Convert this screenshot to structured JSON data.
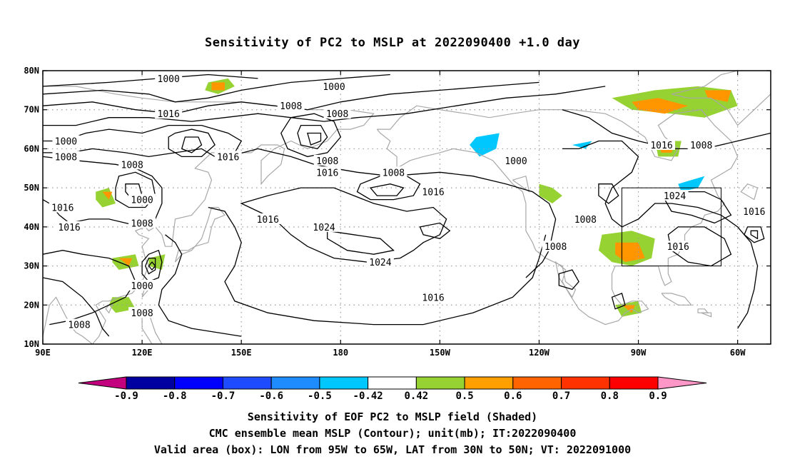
{
  "title": "Sensitivity of PC2 to MSLP at 2022090400 +1.0 day",
  "map": {
    "lat_labels": [
      "80N",
      "70N",
      "60N",
      "50N",
      "40N",
      "30N",
      "20N",
      "10N"
    ],
    "lon_labels": [
      "90E",
      "120E",
      "150E",
      "180",
      "150W",
      "120W",
      "90W",
      "60W"
    ],
    "extent": {
      "lon_west": "90E",
      "lon_east": "50W",
      "lat_south": "10N",
      "lat_north": "80N"
    },
    "contour_labels": [
      {
        "text": "1000",
        "lon": 128,
        "lat": 78
      },
      {
        "text": "1000",
        "lon": 178,
        "lat": 76
      },
      {
        "text": "1008",
        "lon": 165,
        "lat": 71
      },
      {
        "text": "1016",
        "lon": 128,
        "lat": 69
      },
      {
        "text": "1008",
        "lon": 179,
        "lat": 69
      },
      {
        "text": "1000",
        "lon": 97,
        "lat": 62
      },
      {
        "text": "1008",
        "lon": 97,
        "lat": 58
      },
      {
        "text": "1016",
        "lon": 146,
        "lat": 58
      },
      {
        "text": "1008",
        "lon": 176,
        "lat": 57
      },
      {
        "text": "1008",
        "lon": 117,
        "lat": 56
      },
      {
        "text": "1016",
        "lon": 176,
        "lat": 54
      },
      {
        "text": "1008",
        "lon": 196,
        "lat": 54
      },
      {
        "text": "1000",
        "lon": 233,
        "lat": 57
      },
      {
        "text": "1016",
        "lon": 277,
        "lat": 61
      },
      {
        "text": "1008",
        "lon": 289,
        "lat": 61
      },
      {
        "text": "1016",
        "lon": 208,
        "lat": 49
      },
      {
        "text": "1000",
        "lon": 120,
        "lat": 47
      },
      {
        "text": "1016",
        "lon": 96,
        "lat": 45
      },
      {
        "text": "1016",
        "lon": 98,
        "lat": 40
      },
      {
        "text": "1008",
        "lon": 120,
        "lat": 41
      },
      {
        "text": "1016",
        "lon": 158,
        "lat": 42
      },
      {
        "text": "1024",
        "lon": 175,
        "lat": 40
      },
      {
        "text": "1008",
        "lon": 254,
        "lat": 42
      },
      {
        "text": "1024",
        "lon": 281,
        "lat": 48
      },
      {
        "text": "1016",
        "lon": 305,
        "lat": 44
      },
      {
        "text": "1008",
        "lon": 245,
        "lat": 35
      },
      {
        "text": "1016",
        "lon": 282,
        "lat": 35
      },
      {
        "text": "1024",
        "lon": 192,
        "lat": 31
      },
      {
        "text": "1000",
        "lon": 120,
        "lat": 25
      },
      {
        "text": "1016",
        "lon": 208,
        "lat": 22
      },
      {
        "text": "1008",
        "lon": 120,
        "lat": 18
      },
      {
        "text": "1008",
        "lon": 101,
        "lat": 15
      }
    ],
    "valid_area_box": {
      "lon_west": "95W",
      "lon_east": "65W",
      "lat_south": "30N",
      "lat_north": "50N"
    }
  },
  "colorbar": {
    "levels": [
      "-0.9",
      "-0.8",
      "-0.7",
      "-0.6",
      "-0.5",
      "-0.42",
      "0.42",
      "0.5",
      "0.6",
      "0.7",
      "0.8",
      "0.9"
    ],
    "colors": [
      "#c3007d",
      "#0000a0",
      "#0000ff",
      "#1e4bff",
      "#1e8cff",
      "#00c8ff",
      "#ffffff",
      "#96d232",
      "#ffa000",
      "#ff6400",
      "#ff3200",
      "#ff0000",
      "#ff96c8"
    ]
  },
  "colors": {
    "coast": "#a8a8a8",
    "contour": "#000000",
    "grid": "#9a9a9a",
    "positive_low": "#96d232",
    "positive_high": "#ff9600",
    "negative": "#00c8ff"
  },
  "captions": [
    "Sensitivity of EOF PC2 to MSLP field (Shaded)",
    "CMC ensemble mean MSLP (Contour); unit(mb); IT:2022090400",
    "Valid area (box): LON from 95W to 65W, LAT from 30N to 50N; VT: 2022091000"
  ]
}
